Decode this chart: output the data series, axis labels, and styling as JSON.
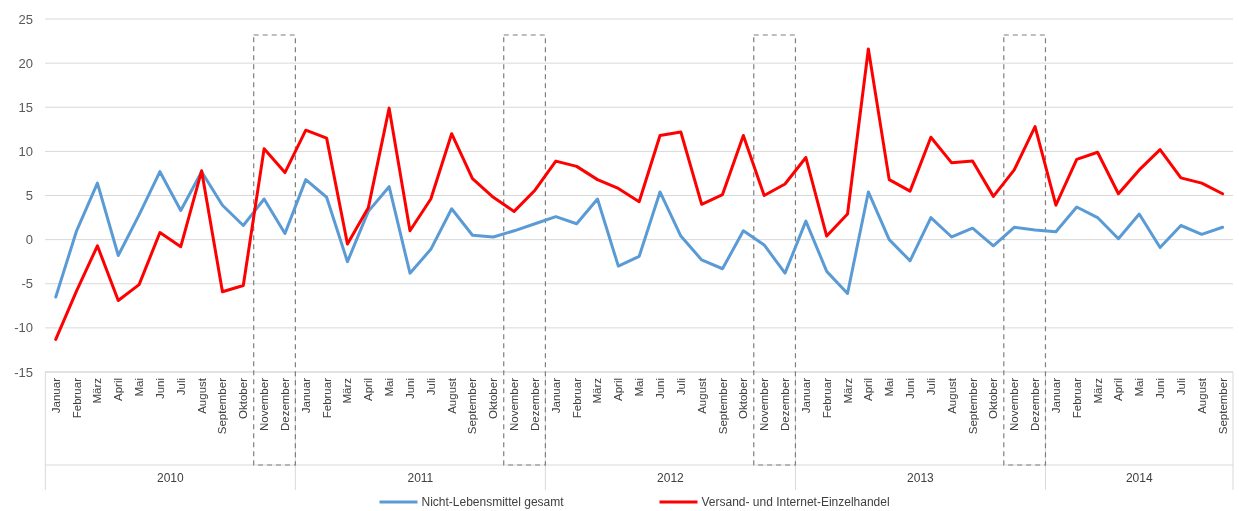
{
  "chart_data": {
    "type": "line",
    "x": [
      "2010-01",
      "2010-02",
      "2010-03",
      "2010-04",
      "2010-05",
      "2010-06",
      "2010-07",
      "2010-08",
      "2010-09",
      "2010-10",
      "2010-11",
      "2010-12",
      "2011-01",
      "2011-02",
      "2011-03",
      "2011-04",
      "2011-05",
      "2011-06",
      "2011-07",
      "2011-08",
      "2011-09",
      "2011-10",
      "2011-11",
      "2011-12",
      "2012-01",
      "2012-02",
      "2012-03",
      "2012-04",
      "2012-05",
      "2012-06",
      "2012-07",
      "2012-08",
      "2012-09",
      "2012-10",
      "2012-11",
      "2012-12",
      "2013-01",
      "2013-02",
      "2013-03",
      "2013-04",
      "2013-05",
      "2013-06",
      "2013-07",
      "2013-08",
      "2013-09",
      "2013-10",
      "2013-11",
      "2013-12",
      "2014-01",
      "2014-02",
      "2014-03",
      "2014-04",
      "2014-05",
      "2014-06",
      "2014-07",
      "2014-08",
      "2014-09"
    ],
    "series": [
      {
        "name": "Nicht-Lebensmittel gesamt",
        "color": "#5b9bd5",
        "values": [
          -6.5,
          1,
          6.4,
          -1.8,
          2.8,
          7.7,
          3.3,
          7.7,
          3.9,
          1.6,
          4.6,
          0.7,
          6.8,
          4.8,
          -2.5,
          3.2,
          6.0,
          -3.8,
          -1.1,
          3.5,
          0.5,
          0.3,
          1.0,
          1.8,
          2.6,
          1.8,
          4.6,
          -3.0,
          -1.9,
          5.4,
          0.4,
          -2.3,
          -3.3,
          1.0,
          -0.6,
          -3.8,
          2.1,
          -3.6,
          -6.1,
          5.4,
          0,
          -2.4,
          2.5,
          0.3,
          1.3,
          -0.7,
          1.4,
          1.1,
          0.9,
          3.7,
          2.5,
          0.1,
          2.9,
          -0.9,
          1.6,
          0.6,
          1.4
        ]
      },
      {
        "name": "Versand- und Internet-Einzelhandel",
        "color": "#ff0000",
        "values": [
          -11.3,
          -5.8,
          -0.7,
          -6.9,
          -5.1,
          0.8,
          -0.8,
          7.8,
          -5.9,
          -5.2,
          10.3,
          7.6,
          12.4,
          11.5,
          -0.5,
          3.6,
          14.9,
          1.0,
          4.6,
          12.0,
          6.9,
          4.8,
          3.2,
          5.6,
          8.9,
          8.3,
          6.8,
          5.8,
          4.3,
          11.8,
          12.2,
          4.0,
          5.1,
          11.8,
          5.0,
          6.3,
          9.3,
          0.4,
          2.9,
          21.6,
          6.8,
          5.5,
          11.6,
          8.7,
          8.9,
          4.9,
          7.9,
          12.8,
          3.9,
          9.1,
          9.9,
          5.2,
          7.9,
          10.2,
          7.0,
          6.4,
          5.2
        ]
      }
    ],
    "xlim": [
      "2009-12-16",
      "2014-09-16"
    ],
    "xticks": [
      {
        "value": "2010-01",
        "label": "Januar"
      },
      {
        "value": "2010-02",
        "label": "Februar"
      },
      {
        "value": "2010-03",
        "label": "März"
      },
      {
        "value": "2010-04",
        "label": "April"
      },
      {
        "value": "2010-05",
        "label": "Mai"
      },
      {
        "value": "2010-06",
        "label": "Juni"
      },
      {
        "value": "2010-07",
        "label": "Juli"
      },
      {
        "value": "2010-08",
        "label": "August"
      },
      {
        "value": "2010-09",
        "label": "September"
      },
      {
        "value": "2010-10",
        "label": "Oktober"
      },
      {
        "value": "2010-11",
        "label": "November"
      },
      {
        "value": "2010-12",
        "label": "Dezember"
      },
      {
        "value": "2011-01",
        "label": "Januar"
      },
      {
        "value": "2011-02",
        "label": "Februar"
      },
      {
        "value": "2011-03",
        "label": "März"
      },
      {
        "value": "2011-04",
        "label": "April"
      },
      {
        "value": "2011-05",
        "label": "Mai"
      },
      {
        "value": "2011-06",
        "label": "Juni"
      },
      {
        "value": "2011-07",
        "label": "Juli"
      },
      {
        "value": "2011-08",
        "label": "August"
      },
      {
        "value": "2011-09",
        "label": "September"
      },
      {
        "value": "2011-10",
        "label": "Oktober"
      },
      {
        "value": "2011-11",
        "label": "November"
      },
      {
        "value": "2011-12",
        "label": "Dezember"
      },
      {
        "value": "2012-01",
        "label": "Januar"
      },
      {
        "value": "2012-02",
        "label": "Februar"
      },
      {
        "value": "2012-03",
        "label": "März"
      },
      {
        "value": "2012-04",
        "label": "April"
      },
      {
        "value": "2012-05",
        "label": "Mai"
      },
      {
        "value": "2012-06",
        "label": "Juni"
      },
      {
        "value": "2012-07",
        "label": "Juli"
      },
      {
        "value": "2012-08",
        "label": "August"
      },
      {
        "value": "2012-09",
        "label": "September"
      },
      {
        "value": "2012-10",
        "label": "Oktober"
      },
      {
        "value": "2012-11",
        "label": "November"
      },
      {
        "value": "2012-12",
        "label": "Dezember"
      },
      {
        "value": "2013-01",
        "label": "Januar"
      },
      {
        "value": "2013-02",
        "label": "Februar"
      },
      {
        "value": "2013-03",
        "label": "März"
      },
      {
        "value": "2013-04",
        "label": "April"
      },
      {
        "value": "2013-05",
        "label": "Mai"
      },
      {
        "value": "2013-06",
        "label": "Juni"
      },
      {
        "value": "2013-07",
        "label": "Juli"
      },
      {
        "value": "2013-08",
        "label": "August"
      },
      {
        "value": "2013-09",
        "label": "September"
      },
      {
        "value": "2013-10",
        "label": "Oktober"
      },
      {
        "value": "2013-11",
        "label": "November"
      },
      {
        "value": "2013-12",
        "label": "Dezember"
      },
      {
        "value": "2014-01",
        "label": "Januar"
      },
      {
        "value": "2014-02",
        "label": "Februar"
      },
      {
        "value": "2014-03",
        "label": "März"
      },
      {
        "value": "2014-04",
        "label": "April"
      },
      {
        "value": "2014-05",
        "label": "Mai"
      },
      {
        "value": "2014-06",
        "label": "Juni"
      },
      {
        "value": "2014-07",
        "label": "Juli"
      },
      {
        "value": "2014-08",
        "label": "August"
      },
      {
        "value": "2014-09",
        "label": "September"
      }
    ],
    "ylim": [
      -15,
      25
    ],
    "yticks": [
      -15,
      -10,
      -5,
      0,
      5,
      10,
      15,
      20,
      25
    ],
    "annotations": [
      "2010",
      "2011",
      "2012",
      "2013",
      "2014"
    ],
    "grid": "y",
    "legend": "bottom",
    "line_style": "solid"
  }
}
